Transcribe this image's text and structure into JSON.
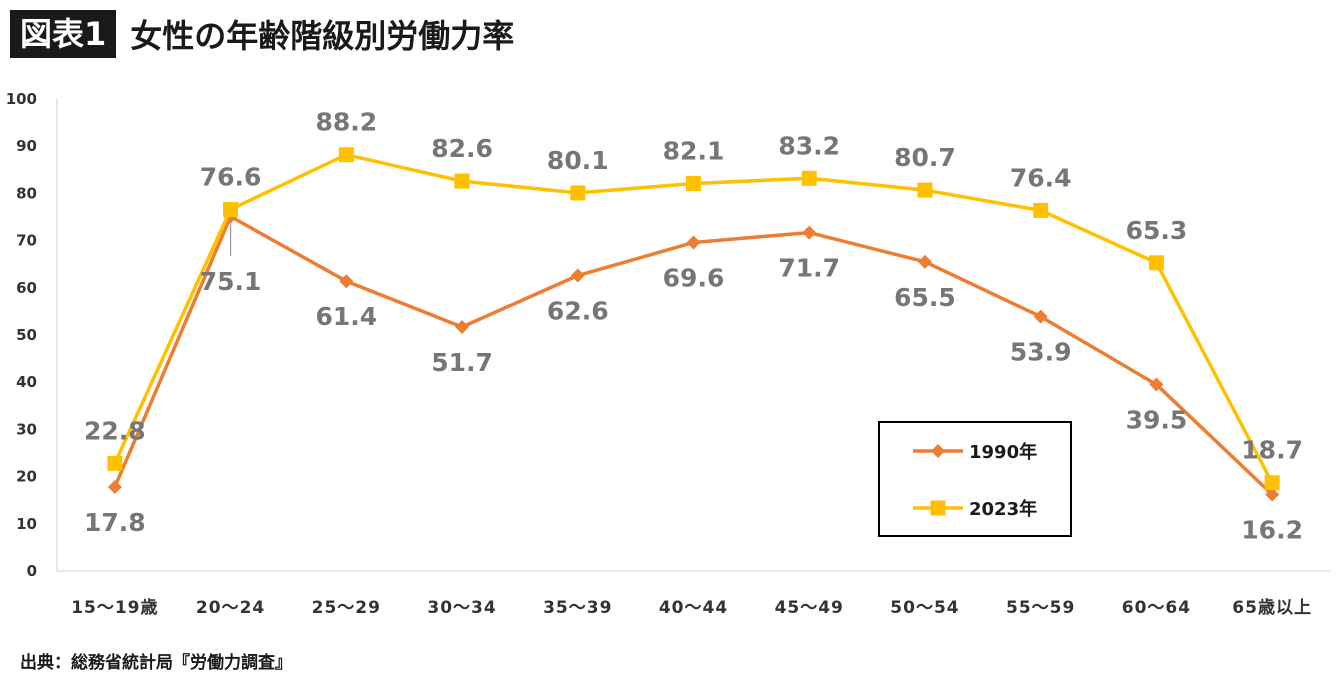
{
  "header": {
    "badge": "図表1",
    "title": "女性の年齢階級別労働力率"
  },
  "source": "出典：総務省統計局『労働力調査』",
  "chart_data": {
    "type": "line",
    "title": "女性の年齢階級別労働力率",
    "xlabel": "",
    "ylabel": "",
    "ylim": [
      0,
      100
    ],
    "yticks": [
      0,
      10,
      20,
      30,
      40,
      50,
      60,
      70,
      80,
      90,
      100
    ],
    "categories": [
      "15～19歳",
      "20～24",
      "25～29",
      "30～34",
      "35～39",
      "40～44",
      "45～49",
      "50～54",
      "55～59",
      "60～64",
      "65歳以上"
    ],
    "grid": false,
    "legend_position": "bottom-right",
    "series": [
      {
        "name": "1990年",
        "color": "#ED7D31",
        "marker": "diamond",
        "values": [
          17.8,
          75.1,
          61.4,
          51.7,
          62.6,
          69.6,
          71.7,
          65.5,
          53.9,
          39.5,
          16.2
        ]
      },
      {
        "name": "2023年",
        "color": "#FFC000",
        "marker": "square",
        "values": [
          22.8,
          76.6,
          88.2,
          82.6,
          80.1,
          82.1,
          83.2,
          80.7,
          76.4,
          65.3,
          18.7
        ]
      }
    ]
  }
}
